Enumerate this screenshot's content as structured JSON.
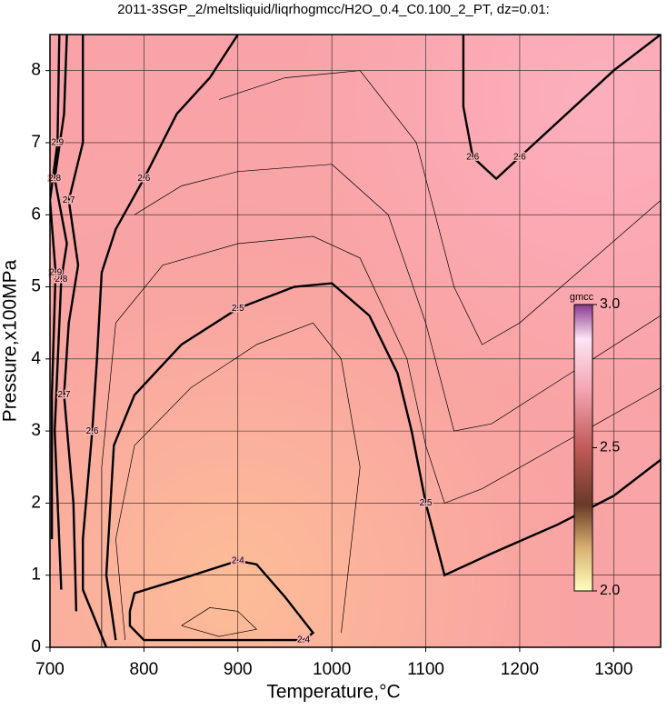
{
  "chart_data": {
    "type": "contour",
    "title": "2011-3SGP_2/meltsliquid/liqrhogmcc/H2O_0.4_C0.100_2_PT, dz=0.01:",
    "x_label": "Temperature,°C",
    "y_label": "Pressure,x100MPa",
    "xlim": [
      700,
      1350
    ],
    "ylim": [
      0,
      8.5
    ],
    "xticks": [
      700,
      800,
      900,
      1000,
      1100,
      1200,
      1300
    ],
    "yticks": [
      0,
      1,
      2,
      3,
      4,
      5,
      6,
      7,
      8
    ],
    "grid": true,
    "colorbar": {
      "label": "gmcc",
      "lim": [
        2,
        3
      ],
      "ticks": [
        {
          "value": 2,
          "label": "2.0"
        },
        {
          "value": 2.5,
          "label": "2.5"
        },
        {
          "value": 3,
          "label": "3.0"
        }
      ]
    },
    "contours": [
      {
        "level": 2.4,
        "major": true,
        "x": [
          785,
          790,
          840,
          900,
          920,
          950,
          980,
          970,
          800,
          785,
          785
        ],
        "y": [
          0.5,
          0.75,
          0.95,
          1.2,
          1.15,
          0.7,
          0.2,
          0.1,
          0.1,
          0.3,
          0.5
        ]
      },
      {
        "level": 2.5,
        "major": true,
        "x": [
          770,
          760,
          768,
          790,
          840,
          900,
          960,
          1000,
          1040,
          1070,
          1085,
          1100,
          1120,
          1170,
          1240,
          1300,
          1350
        ],
        "y": [
          0.1,
          1.0,
          2.8,
          3.5,
          4.2,
          4.7,
          5.0,
          5.05,
          4.6,
          3.8,
          3.0,
          2.0,
          1.0,
          1.3,
          1.7,
          2.1,
          2.6
        ]
      },
      {
        "level": 2.6,
        "major": true,
        "x": [
          760,
          735,
          735,
          745,
          750,
          755,
          770,
          800,
          835,
          870,
          900
        ],
        "y": [
          0,
          0.8,
          1.5,
          3.0,
          4.0,
          5.2,
          5.8,
          6.5,
          7.4,
          7.9,
          8.5
        ]
      },
      {
        "level": 2.6,
        "major": true,
        "x": [
          1140,
          1140,
          1150,
          1175,
          1200,
          1300,
          1350
        ],
        "y": [
          8.5,
          7.5,
          6.8,
          6.5,
          6.8,
          8.0,
          8.5
        ]
      },
      {
        "level": 2.7,
        "major": true,
        "x": [
          728,
          725,
          715,
          720,
          730,
          720,
          735,
          735
        ],
        "y": [
          0.5,
          2.0,
          3.5,
          4.5,
          5.3,
          6.2,
          7.0,
          8.5
        ]
      },
      {
        "level": 2.8,
        "major": true,
        "x": [
          712,
          705,
          712,
          718,
          705,
          715,
          718
        ],
        "y": [
          0.8,
          3.0,
          5.1,
          5.6,
          6.5,
          7.4,
          8.5
        ]
      },
      {
        "level": 2.9,
        "major": true,
        "x": [
          702,
          702,
          706,
          700,
          708,
          710
        ],
        "y": [
          1.5,
          3.5,
          5.2,
          6.2,
          7.0,
          8.5
        ]
      },
      {
        "level": 2.45,
        "major": false,
        "x": [
          780,
          770,
          790,
          850,
          920,
          980,
          1010,
          1030,
          1010
        ],
        "y": [
          0.1,
          1.5,
          2.8,
          3.6,
          4.2,
          4.5,
          4.0,
          2.5,
          0.2
        ]
      },
      {
        "level": 2.55,
        "major": false,
        "x": [
          755,
          755,
          770,
          820,
          900,
          980,
          1030,
          1080,
          1100,
          1120,
          1160,
          1350
        ],
        "y": [
          0,
          2.5,
          4.5,
          5.3,
          5.6,
          5.7,
          5.4,
          4.0,
          2.8,
          2.0,
          2.2,
          3.6
        ]
      },
      {
        "level": 2.57,
        "major": false,
        "x": [
          790,
          840,
          900,
          1000,
          1060,
          1100,
          1130,
          1170,
          1350
        ],
        "y": [
          6.0,
          6.4,
          6.6,
          6.7,
          6.0,
          4.5,
          3.0,
          3.1,
          4.6
        ]
      },
      {
        "level": 2.59,
        "major": false,
        "x": [
          880,
          950,
          1030,
          1090,
          1130,
          1160,
          1200,
          1350
        ],
        "y": [
          7.6,
          7.9,
          8.0,
          7.0,
          5.0,
          4.2,
          4.5,
          6.2
        ]
      },
      {
        "level": 2.35,
        "major": false,
        "x": [
          840,
          870,
          900,
          920,
          880,
          840
        ],
        "y": [
          0.3,
          0.55,
          0.5,
          0.25,
          0.15,
          0.3
        ]
      }
    ]
  }
}
